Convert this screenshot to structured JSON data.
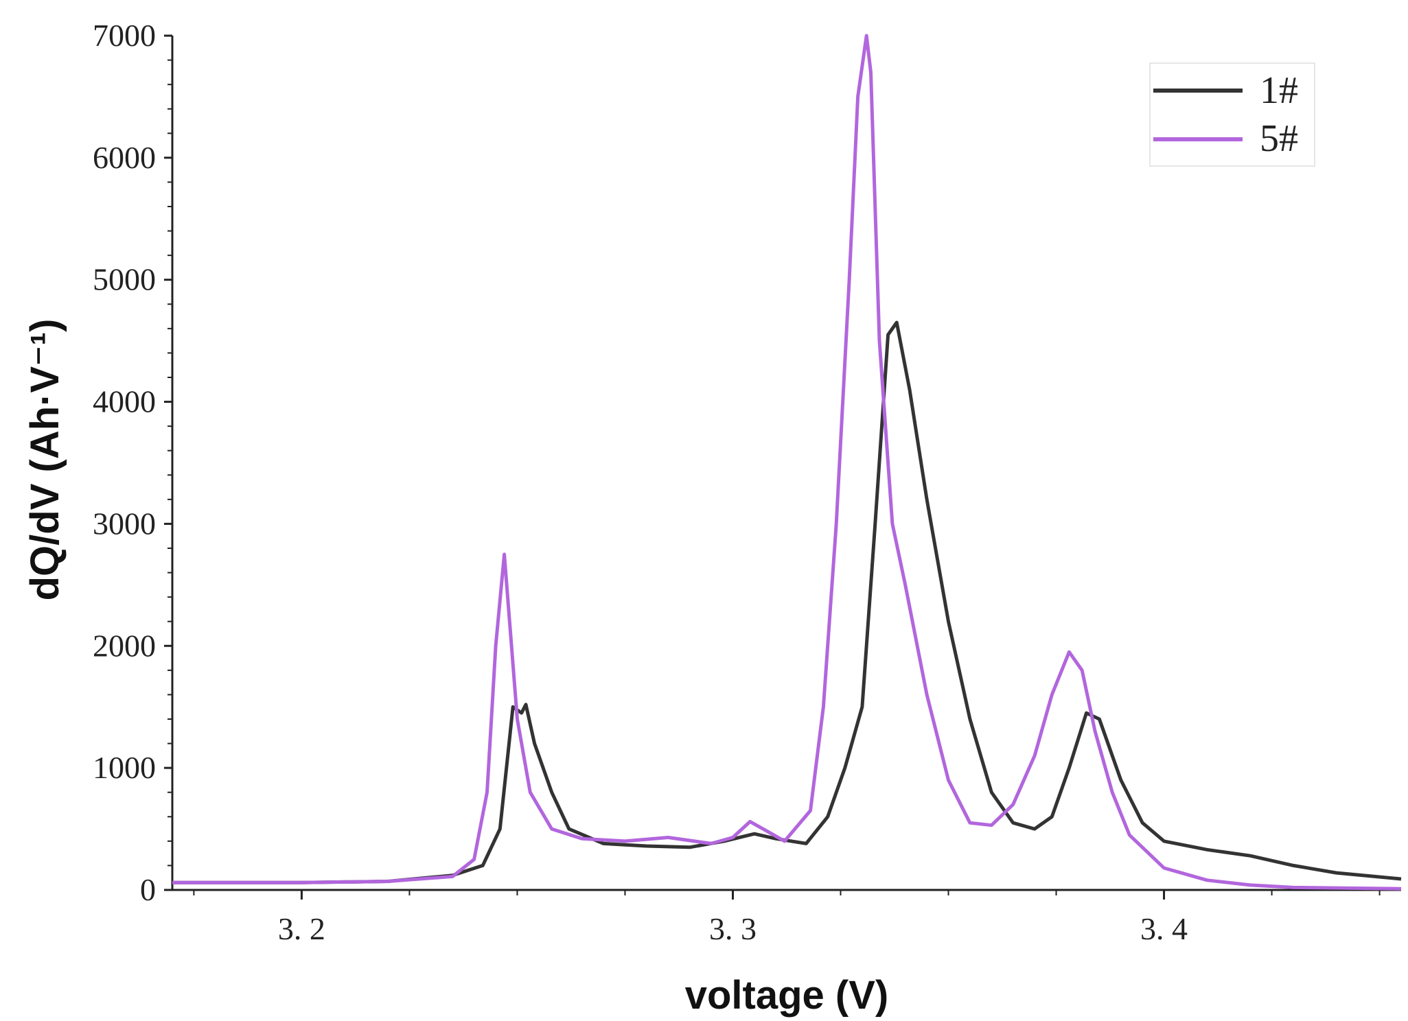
{
  "chart_data": {
    "type": "line",
    "title": "",
    "xlabel": "voltage (V)",
    "ylabel": "dQ/dV (Ah·V⁻¹)",
    "xlim": [
      3.17,
      3.455
    ],
    "ylim": [
      0,
      7000
    ],
    "x_ticks": [
      {
        "value": 3.2,
        "label": "3. 2"
      },
      {
        "value": 3.3,
        "label": "3. 3"
      },
      {
        "value": 3.4,
        "label": "3. 4"
      }
    ],
    "y_ticks": [
      {
        "value": 0,
        "label": "0"
      },
      {
        "value": 1000,
        "label": "1000"
      },
      {
        "value": 2000,
        "label": "2000"
      },
      {
        "value": 3000,
        "label": "3000"
      },
      {
        "value": 4000,
        "label": "4000"
      },
      {
        "value": 5000,
        "label": "5000"
      },
      {
        "value": 6000,
        "label": "6000"
      },
      {
        "value": 7000,
        "label": "7000"
      }
    ],
    "grid": false,
    "legend_position": "top-right",
    "series": [
      {
        "name": "1#",
        "color": "#333333",
        "x": [
          3.17,
          3.2,
          3.22,
          3.235,
          3.242,
          3.246,
          3.249,
          3.251,
          3.252,
          3.254,
          3.258,
          3.262,
          3.27,
          3.28,
          3.29,
          3.298,
          3.305,
          3.31,
          3.317,
          3.322,
          3.326,
          3.33,
          3.333,
          3.336,
          3.338,
          3.341,
          3.345,
          3.35,
          3.355,
          3.36,
          3.365,
          3.37,
          3.374,
          3.378,
          3.382,
          3.385,
          3.39,
          3.395,
          3.4,
          3.41,
          3.42,
          3.43,
          3.44,
          3.455
        ],
        "y": [
          60,
          60,
          70,
          120,
          200,
          500,
          1500,
          1450,
          1520,
          1200,
          800,
          500,
          380,
          360,
          350,
          400,
          460,
          420,
          380,
          600,
          1000,
          1500,
          3000,
          4550,
          4650,
          4100,
          3200,
          2200,
          1400,
          800,
          550,
          500,
          600,
          1000,
          1450,
          1400,
          900,
          550,
          400,
          330,
          280,
          200,
          140,
          90
        ]
      },
      {
        "name": "5#",
        "color": "#b266dd",
        "x": [
          3.17,
          3.2,
          3.22,
          3.235,
          3.24,
          3.243,
          3.245,
          3.247,
          3.248,
          3.25,
          3.253,
          3.258,
          3.265,
          3.275,
          3.285,
          3.295,
          3.3,
          3.304,
          3.308,
          3.312,
          3.318,
          3.321,
          3.324,
          3.327,
          3.329,
          3.331,
          3.332,
          3.334,
          3.337,
          3.34,
          3.345,
          3.35,
          3.355,
          3.36,
          3.365,
          3.37,
          3.374,
          3.378,
          3.381,
          3.384,
          3.388,
          3.392,
          3.4,
          3.41,
          3.42,
          3.43,
          3.455
        ],
        "y": [
          60,
          60,
          70,
          110,
          250,
          800,
          2000,
          2750,
          2300,
          1400,
          800,
          500,
          420,
          400,
          430,
          380,
          430,
          560,
          480,
          400,
          650,
          1500,
          3000,
          5000,
          6500,
          7000,
          6700,
          4500,
          3000,
          2500,
          1600,
          900,
          550,
          530,
          700,
          1100,
          1600,
          1950,
          1800,
          1300,
          800,
          450,
          180,
          80,
          40,
          20,
          10
        ]
      }
    ]
  }
}
